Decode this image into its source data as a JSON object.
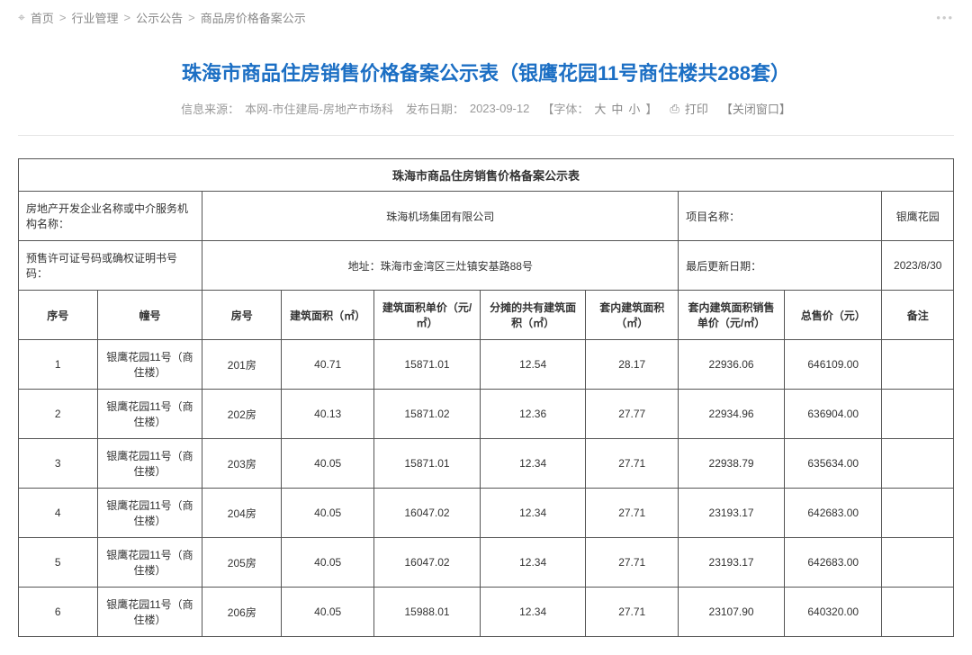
{
  "breadcrumb": {
    "home": "首页",
    "l1": "行业管理",
    "l2": "公示公告",
    "l3": "商品房价格备案公示",
    "sep": ">"
  },
  "page_title": "珠海市商品住房销售价格备案公示表（银鹰花园11号商住楼共288套）",
  "meta": {
    "source_label": "信息来源：",
    "source": "本网-市住建局-房地产市场科",
    "pubdate_label": "发布日期：",
    "pubdate": "2023-09-12",
    "font_label": "【字体：",
    "font_large": "大",
    "font_medium": "中",
    "font_small": "小",
    "font_close": "】",
    "print": "打印",
    "close_win": "【关闭窗口】"
  },
  "header_table": {
    "caption": "珠海市商品住房销售价格备案公示表",
    "dev_label": "房地产开发企业名称或中介服务机构名称：",
    "dev_value": "珠海机场集团有限公司",
    "proj_label": "项目名称：",
    "proj_value": "银鹰花园",
    "cert_label": "预售许可证号码或确权证明书号码：",
    "addr_label": "地址：",
    "addr_value": "珠海市金湾区三灶镇安基路88号",
    "update_label": "最后更新日期：",
    "update_value": "2023/8/30"
  },
  "columns": {
    "seq": "序号",
    "bldg": "幢号",
    "room": "房号",
    "area": "建筑面积（㎡）",
    "uprice": "建筑面积单价（元/㎡）",
    "share": "分摊的共有建筑面积（㎡）",
    "inner": "套内建筑面积（㎡）",
    "iup": "套内建筑面积销售单价（元/㎡）",
    "total": "总售价（元）",
    "note": "备注"
  },
  "rows": [
    {
      "seq": "1",
      "bldg": "银鹰花园11号（商住楼）",
      "room": "201房",
      "area": "40.71",
      "uprice": "15871.01",
      "share": "12.54",
      "inner": "28.17",
      "iup": "22936.06",
      "total": "646109.00",
      "note": ""
    },
    {
      "seq": "2",
      "bldg": "银鹰花园11号（商住楼）",
      "room": "202房",
      "area": "40.13",
      "uprice": "15871.02",
      "share": "12.36",
      "inner": "27.77",
      "iup": "22934.96",
      "total": "636904.00",
      "note": ""
    },
    {
      "seq": "3",
      "bldg": "银鹰花园11号（商住楼）",
      "room": "203房",
      "area": "40.05",
      "uprice": "15871.01",
      "share": "12.34",
      "inner": "27.71",
      "iup": "22938.79",
      "total": "635634.00",
      "note": ""
    },
    {
      "seq": "4",
      "bldg": "银鹰花园11号（商住楼）",
      "room": "204房",
      "area": "40.05",
      "uprice": "16047.02",
      "share": "12.34",
      "inner": "27.71",
      "iup": "23193.17",
      "total": "642683.00",
      "note": ""
    },
    {
      "seq": "5",
      "bldg": "银鹰花园11号（商住楼）",
      "room": "205房",
      "area": "40.05",
      "uprice": "16047.02",
      "share": "12.34",
      "inner": "27.71",
      "iup": "23193.17",
      "total": "642683.00",
      "note": ""
    },
    {
      "seq": "6",
      "bldg": "银鹰花园11号（商住楼）",
      "room": "206房",
      "area": "40.05",
      "uprice": "15988.01",
      "share": "12.34",
      "inner": "27.71",
      "iup": "23107.90",
      "total": "640320.00",
      "note": ""
    }
  ],
  "style": {
    "title_color": "#1c6fc4",
    "border_color": "#555555",
    "meta_color": "#999999"
  }
}
